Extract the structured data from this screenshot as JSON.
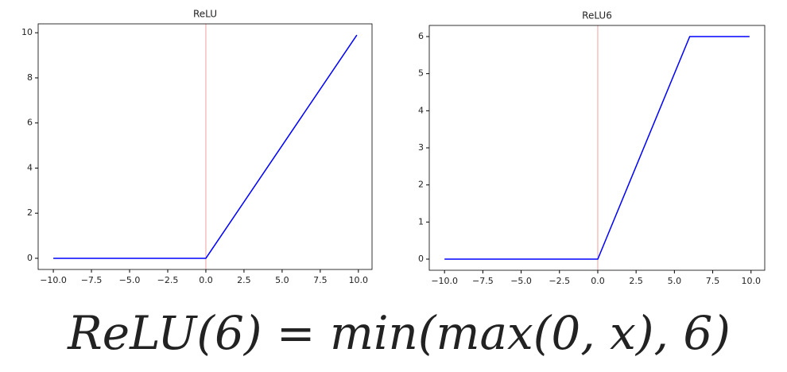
{
  "chart_data": [
    {
      "type": "line",
      "title": "ReLU",
      "x": [
        -10,
        0,
        9.9
      ],
      "values": [
        0,
        0,
        9.9
      ],
      "color": "#0000ff",
      "vline": {
        "x": 0,
        "color": "#f2a0a0"
      },
      "xlim": [
        -10.995,
        10.895
      ],
      "xticks": [
        {
          "value": -10,
          "label": "−10.0"
        },
        {
          "value": -7.5,
          "label": "−7.5"
        },
        {
          "value": -5,
          "label": "−5.0"
        },
        {
          "value": -2.5,
          "label": "−2.5"
        },
        {
          "value": 0,
          "label": "0.0"
        },
        {
          "value": 2.5,
          "label": "2.5"
        },
        {
          "value": 5,
          "label": "5.0"
        },
        {
          "value": 7.5,
          "label": "7.5"
        },
        {
          "value": 10,
          "label": "10.0"
        }
      ],
      "ylim": [
        -0.495,
        10.395
      ],
      "yticks": [
        0,
        2,
        4,
        6,
        8,
        10
      ]
    },
    {
      "type": "line",
      "title": "ReLU6",
      "x": [
        -10,
        0,
        6,
        9.9
      ],
      "values": [
        0,
        0,
        6,
        6
      ],
      "color": "#0000ff",
      "vline": {
        "x": 0,
        "color": "#f2a0a0"
      },
      "xlim": [
        -10.995,
        10.895
      ],
      "xticks": [
        {
          "value": -10,
          "label": "−10.0"
        },
        {
          "value": -7.5,
          "label": "−7.5"
        },
        {
          "value": -5,
          "label": "−5.0"
        },
        {
          "value": -2.5,
          "label": "−2.5"
        },
        {
          "value": 0,
          "label": "0.0"
        },
        {
          "value": 2.5,
          "label": "2.5"
        },
        {
          "value": 5,
          "label": "5.0"
        },
        {
          "value": 7.5,
          "label": "7.5"
        },
        {
          "value": 10,
          "label": "10.0"
        }
      ],
      "ylim": [
        -0.3,
        6.3
      ],
      "yticks": [
        0,
        1,
        2,
        3,
        4,
        5,
        6
      ]
    }
  ],
  "formula": "ReLU(6) = min(max(0, x), 6)"
}
